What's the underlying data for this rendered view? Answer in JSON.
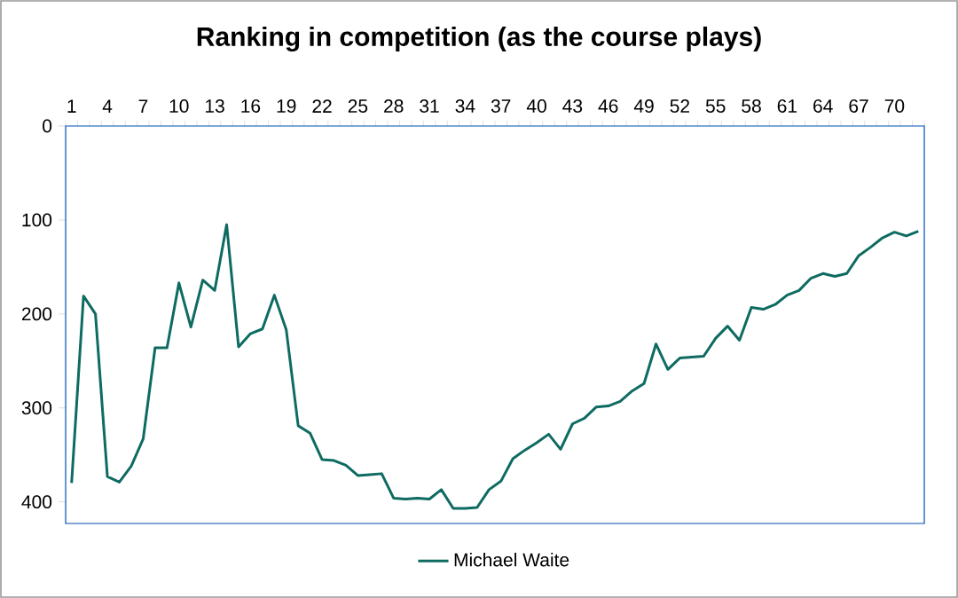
{
  "chart_data": {
    "type": "line",
    "title": "Ranking in competition (as the course plays)",
    "categories": [
      "1",
      null,
      null,
      "4",
      null,
      null,
      "7",
      null,
      null,
      "10",
      null,
      null,
      "13",
      null,
      null,
      "16",
      null,
      null,
      "19",
      null,
      null,
      "22",
      null,
      null,
      "25",
      null,
      null,
      "28",
      null,
      null,
      "31",
      null,
      null,
      "34",
      null,
      null,
      "37",
      null,
      null,
      "40",
      null,
      null,
      "43",
      null,
      null,
      "46",
      null,
      null,
      "49",
      null,
      null,
      "52",
      null,
      null,
      "55",
      null,
      null,
      "58",
      null,
      null,
      "61",
      null,
      null,
      "64",
      null,
      null,
      "67",
      null,
      null,
      "70",
      null,
      null
    ],
    "series": [
      {
        "name": "Michael Waite",
        "color": "#0e6b61",
        "values": [
          380,
          181,
          200,
          373,
          379,
          362,
          333,
          236,
          236,
          167,
          214,
          164,
          175,
          105,
          235,
          221,
          216,
          180,
          217,
          319,
          327,
          355,
          356,
          361,
          372,
          371,
          370,
          396,
          397,
          396,
          397,
          387,
          407,
          407,
          406,
          387,
          378,
          354,
          345,
          337,
          328,
          344,
          317,
          311,
          299,
          298,
          293,
          282,
          274,
          232,
          259,
          247,
          246,
          245,
          226,
          213,
          228,
          193,
          195,
          190,
          180,
          175,
          162,
          157,
          160,
          157,
          138,
          129,
          119,
          113,
          117,
          112
        ]
      }
    ],
    "ylim": [
      423,
      0
    ],
    "yticks": [
      0,
      100,
      200,
      300,
      400
    ],
    "legend": "bottom",
    "marker": "none",
    "line_style": "solid"
  }
}
